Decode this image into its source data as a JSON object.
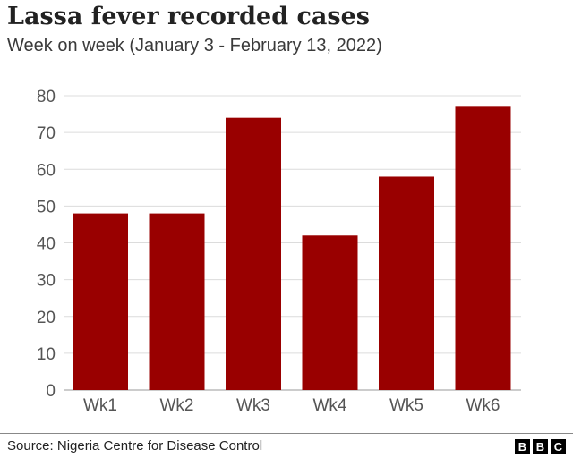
{
  "chart_data": {
    "type": "bar",
    "title": "Lassa fever recorded cases",
    "subtitle": "Week on week (January 3 - February 13, 2022)",
    "categories": [
      "Wk1",
      "Wk2",
      "Wk3",
      "Wk4",
      "Wk5",
      "Wk6"
    ],
    "values": [
      48,
      48,
      74,
      42,
      58,
      77
    ],
    "yticks": [
      0,
      10,
      20,
      30,
      40,
      50,
      60,
      70,
      80
    ],
    "ylim": [
      0,
      80
    ],
    "grid": true,
    "bar_color": "#990000"
  },
  "footer": {
    "source": "Source: Nigeria Centre for Disease Control",
    "logo_letters": [
      "B",
      "B",
      "C"
    ]
  }
}
